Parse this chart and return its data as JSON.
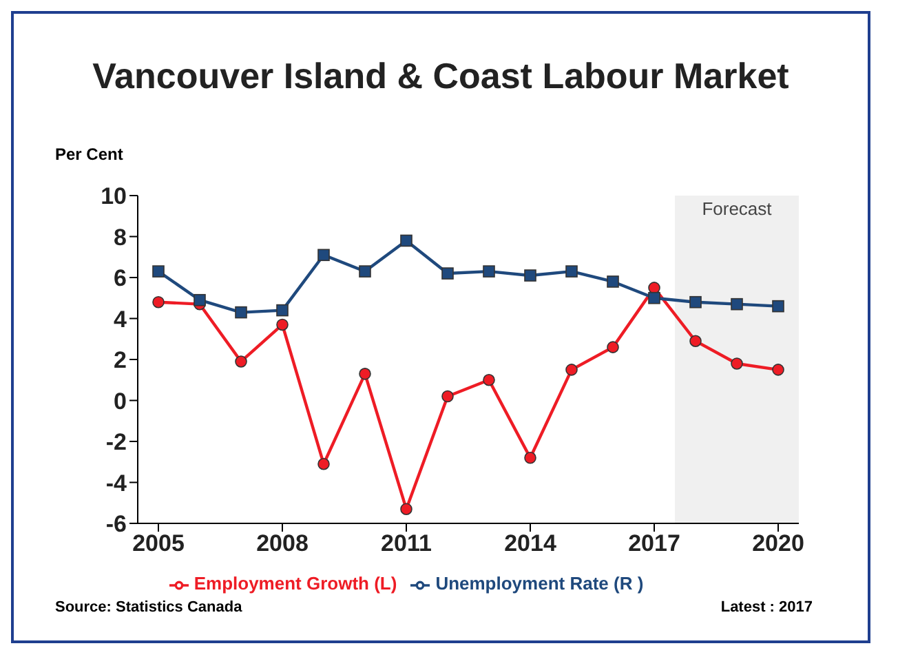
{
  "chart_data": {
    "type": "line",
    "title": "Vancouver Island & Coast Labour Market",
    "ylabel": "Per Cent",
    "x": [
      2005,
      2006,
      2007,
      2008,
      2009,
      2010,
      2011,
      2012,
      2013,
      2014,
      2015,
      2016,
      2017,
      2018,
      2019,
      2020
    ],
    "xlim": [
      2004.5,
      2020.5
    ],
    "xticks": [
      2005,
      2008,
      2011,
      2014,
      2017,
      2020
    ],
    "ylim": [
      -6,
      10
    ],
    "yticks": [
      -6,
      -4,
      -2,
      0,
      2,
      4,
      6,
      8,
      10
    ],
    "series": [
      {
        "name": "Employment Growth (L)",
        "color": "#ee1c25",
        "marker": "circle",
        "values": [
          4.8,
          4.7,
          1.9,
          3.7,
          -3.1,
          1.3,
          -5.3,
          0.2,
          1.0,
          -2.8,
          1.5,
          2.6,
          5.5,
          2.9,
          1.8,
          1.5
        ]
      },
      {
        "name": "Unemployment Rate (R )",
        "color": "#1f497d",
        "marker": "square",
        "values": [
          6.3,
          4.9,
          4.3,
          4.4,
          7.1,
          6.3,
          7.8,
          6.2,
          6.3,
          6.1,
          6.3,
          5.8,
          5.0,
          4.8,
          4.7,
          4.6
        ]
      }
    ],
    "bands": [
      {
        "axis": "x",
        "from": 2017.5,
        "to": 2020.5,
        "label": "Forecast",
        "color": "#f0f0f0"
      }
    ],
    "legend": "bottom",
    "annotations": [
      "Source:  Statistics Canada",
      "Latest : 2017"
    ]
  }
}
